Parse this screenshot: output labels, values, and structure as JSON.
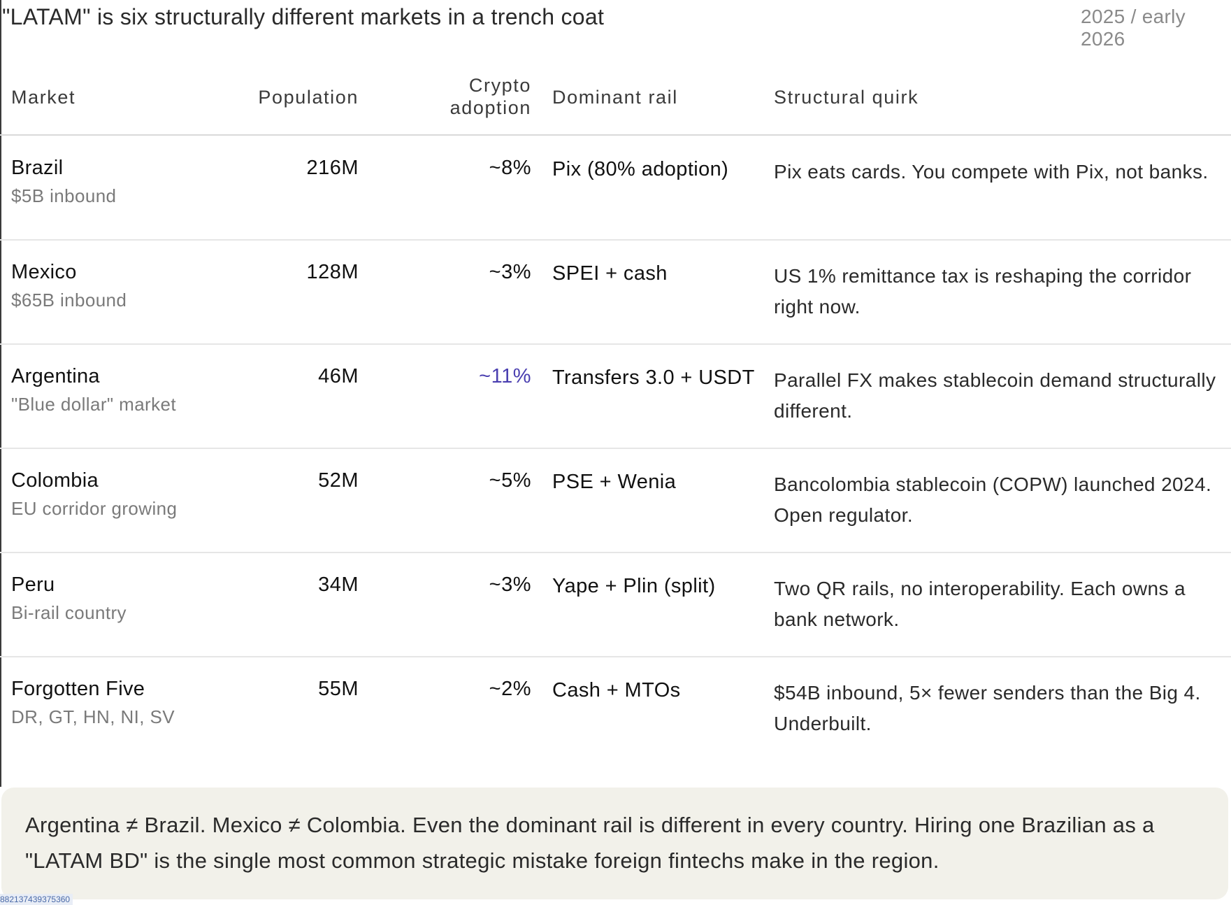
{
  "title": "\"LATAM\" is six structurally different markets in a trench coat",
  "date": "2025 / early 2026",
  "headers": {
    "market": "Market",
    "population": "Population",
    "crypto": "Crypto adoption",
    "rail": "Dominant rail",
    "quirk": "Structural quirk"
  },
  "rows": [
    {
      "market": "Brazil",
      "sub": "$5B inbound",
      "population": "216M",
      "crypto": "~8%",
      "rail": "Pix (80% adoption)",
      "quirk": "Pix eats cards. You compete with Pix, not banks."
    },
    {
      "market": "Mexico",
      "sub": "$65B inbound",
      "population": "128M",
      "crypto": "~3%",
      "rail": "SPEI + cash",
      "quirk": "US 1% remittance tax is reshaping the corridor right now."
    },
    {
      "market": "Argentina",
      "sub": "\"Blue dollar\" market",
      "population": "46M",
      "crypto": "~11%",
      "rail": "Transfers 3.0 + USDT",
      "quirk": "Parallel FX makes stablecoin demand structurally different."
    },
    {
      "market": "Colombia",
      "sub": "EU corridor growing",
      "population": "52M",
      "crypto": "~5%",
      "rail": "PSE + Wenia",
      "quirk": "Bancolombia stablecoin (COPW) launched 2024. Open regulator."
    },
    {
      "market": "Peru",
      "sub": "Bi-rail country",
      "population": "34M",
      "crypto": "~3%",
      "rail": "Yape + Plin (split)",
      "quirk": "Two QR rails, no interoperability. Each owns a bank network."
    },
    {
      "market": "Forgotten Five",
      "sub": "DR, GT, HN, NI, SV",
      "population": "55M",
      "crypto": "~2%",
      "rail": "Cash + MTOs",
      "quirk": "$54B inbound, 5× fewer senders than the Big 4. Underbuilt."
    }
  ],
  "highlight_color": "#4a3fb0",
  "callout": "Argentina ≠ Brazil. Mexico ≠ Colombia. Even the dominant rail is different in every country. Hiring one Brazilian as a \"LATAM BD\" is the single most common strategic mistake foreign fintechs make in the region.",
  "footer_id": "882137439375360"
}
